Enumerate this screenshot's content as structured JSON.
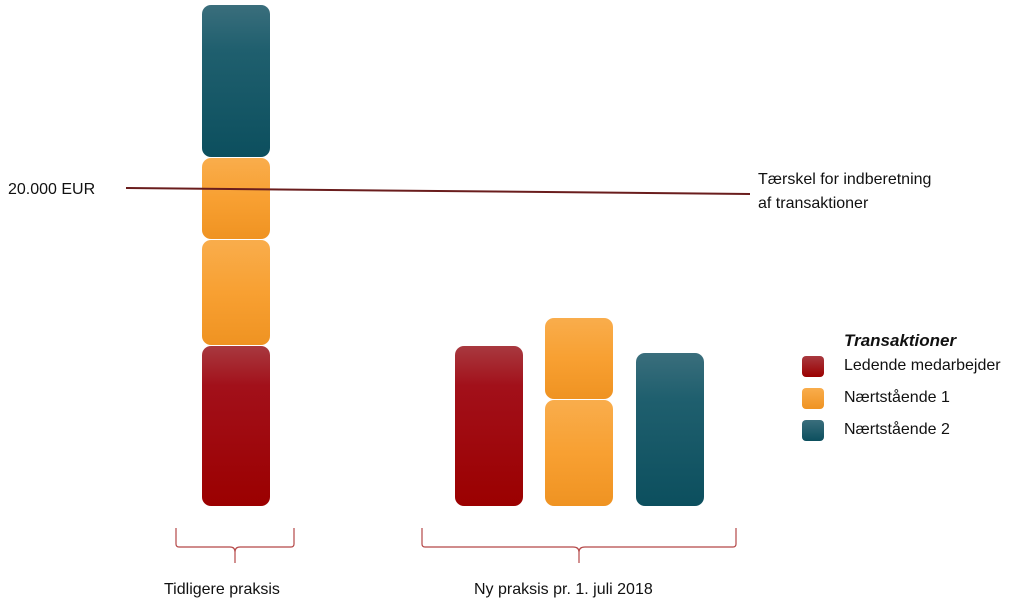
{
  "colors": {
    "red": "#a2101a",
    "orange": "#f7a030",
    "teal": "#1f5f6e",
    "threshold_line": "#6a1d1d",
    "bracket": "#b54848"
  },
  "threshold": {
    "label": "20.000 EUR",
    "caption_line1": "Tærskel for indberetning",
    "caption_line2": "af transaktioner"
  },
  "groups": {
    "left_label": "Tidligere praksis",
    "right_label": "Ny praksis pr. 1. juli 2018"
  },
  "legend": {
    "title": "Transaktioner",
    "items": [
      {
        "label": "Ledende medarbejder",
        "color": "#a2101a"
      },
      {
        "label": "Nærtstående 1",
        "color": "#f7a030"
      },
      {
        "label": "Nærtstående 2",
        "color": "#1f5f6e"
      }
    ]
  }
}
